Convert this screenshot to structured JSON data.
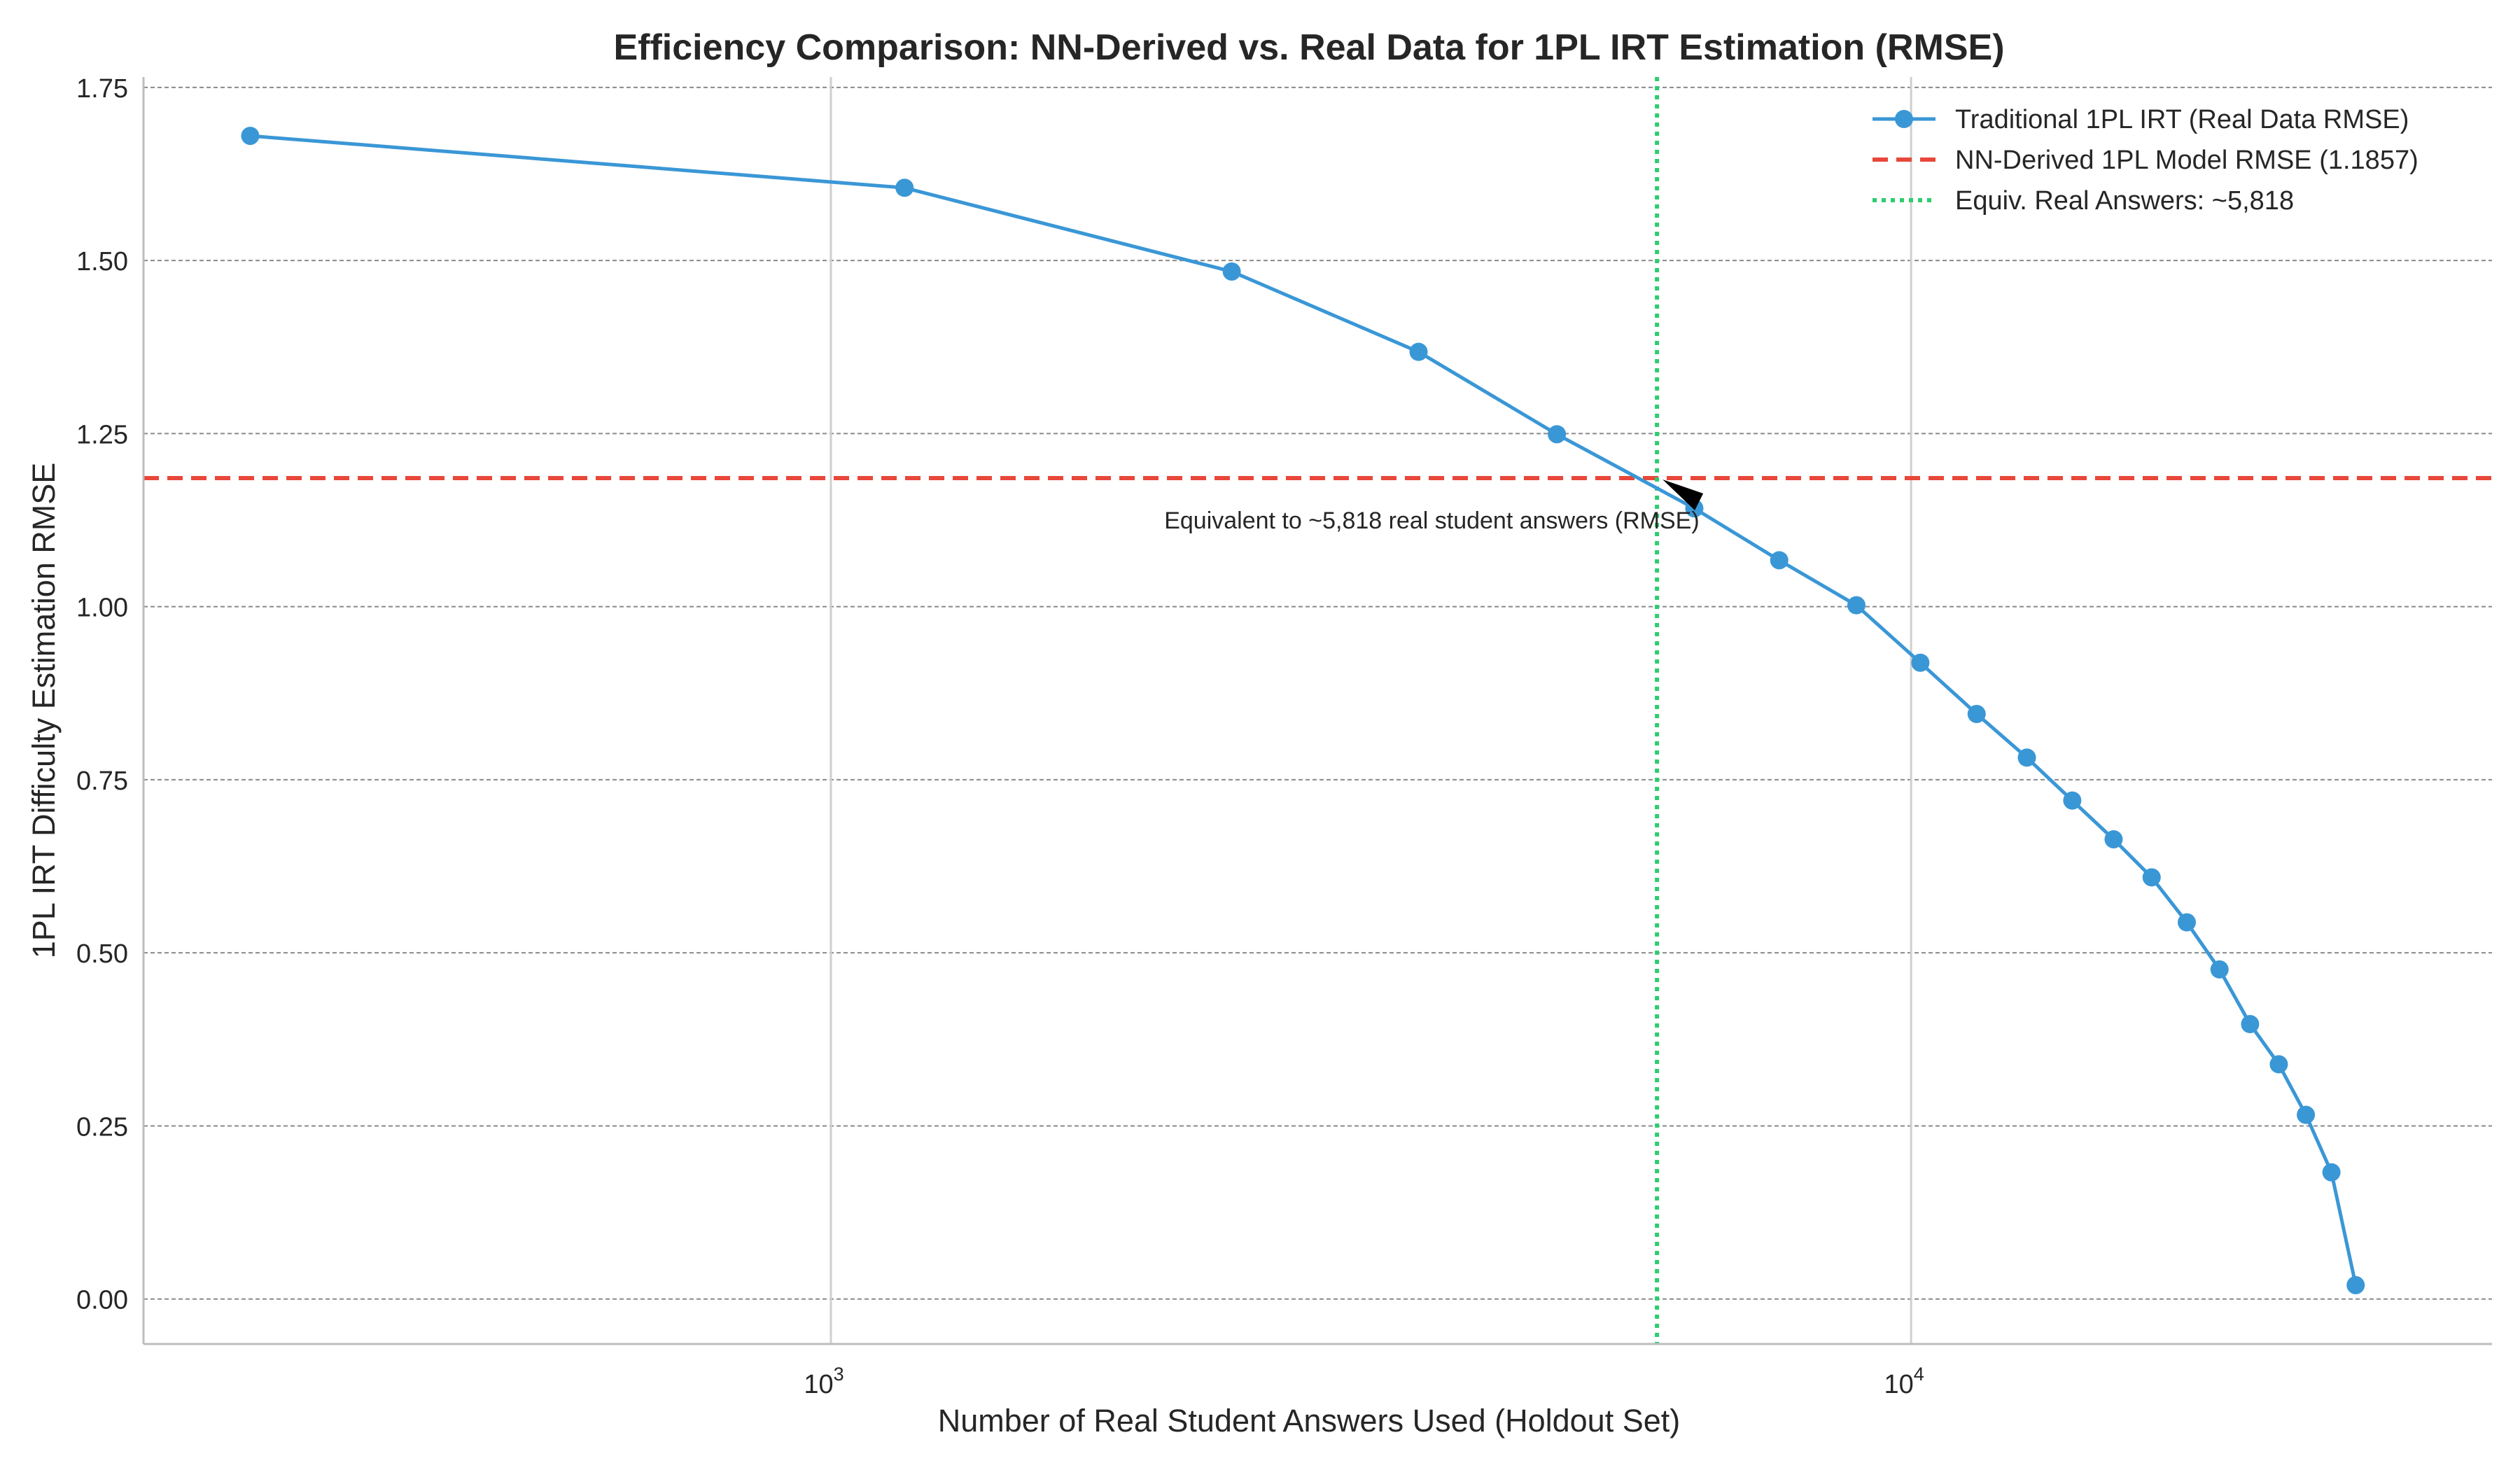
{
  "chart_data": {
    "type": "line",
    "title": "Efficiency Comparison: NN-Derived vs. Real Data for 1PL IRT Estimation (RMSE)",
    "xlabel": "Number of Real Student Answers Used (Holdout Set)",
    "ylabel": "1PL IRT Difficulty Estimation RMSE",
    "xscale": "log",
    "xlim": [
      231,
      34500
    ],
    "ylim": [
      -0.065,
      1.765
    ],
    "grid": true,
    "legend_position": "top-right",
    "x_ticks": [
      {
        "value": 1000,
        "base": "10",
        "exp": "3"
      },
      {
        "value": 10000,
        "base": "10",
        "exp": "4"
      }
    ],
    "y_ticks": [
      {
        "value": 0.0,
        "label": "0.00"
      },
      {
        "value": 0.25,
        "label": "0.25"
      },
      {
        "value": 0.5,
        "label": "0.50"
      },
      {
        "value": 0.75,
        "label": "0.75"
      },
      {
        "value": 1.0,
        "label": "1.00"
      },
      {
        "value": 1.25,
        "label": "1.25"
      },
      {
        "value": 1.5,
        "label": "1.50"
      },
      {
        "value": 1.75,
        "label": "1.75"
      }
    ],
    "series": [
      {
        "name": "Traditional 1PL IRT (Real Data RMSE)",
        "color": "#3a97d6",
        "marker": "circle",
        "x": [
          290,
          1170,
          2350,
          3500,
          4700,
          6300,
          7550,
          8900,
          10200,
          11500,
          12800,
          14100,
          15400,
          16700,
          18000,
          19300,
          20600,
          21900,
          23200,
          24500,
          25800
        ],
        "y": [
          1.68,
          1.605,
          1.484,
          1.368,
          1.249,
          1.142,
          1.067,
          1.002,
          0.919,
          0.845,
          0.782,
          0.72,
          0.664,
          0.609,
          0.544,
          0.476,
          0.397,
          0.339,
          0.266,
          0.183,
          0.02
        ]
      }
    ],
    "reference_lines": [
      {
        "name": "NN-Derived 1PL Model RMSE (1.1857)",
        "orientation": "horizontal",
        "value": 1.1857,
        "style": "dashed",
        "color": "#e8473a"
      },
      {
        "name": "Equiv. Real Answers: ~5,818",
        "orientation": "vertical",
        "value": 5818,
        "style": "dotted",
        "color": "#2ecc71"
      }
    ],
    "annotation": {
      "text": "Equivalent to ~5,818 real student answers (RMSE)",
      "point": {
        "x": 5818,
        "y": 1.1857
      },
      "text_anchor": {
        "x": 3600,
        "y": 1.125
      }
    }
  }
}
